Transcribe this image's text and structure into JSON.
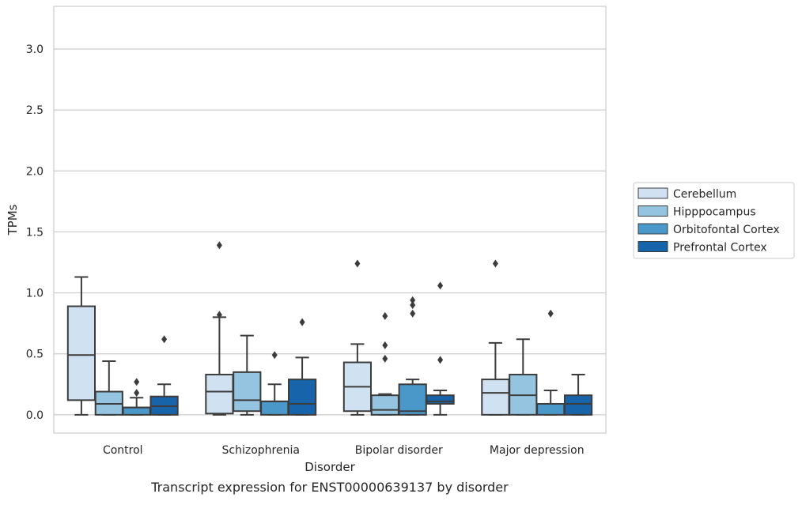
{
  "chart_data": {
    "type": "box",
    "caption": "Transcript expression for ENST00000639137 by disorder",
    "xlabel": "Disorder",
    "ylabel": "TPMs",
    "ylim": [
      -0.15,
      3.35
    ],
    "yticks": [
      0.0,
      0.5,
      1.0,
      1.5,
      2.0,
      2.5,
      3.0
    ],
    "ytick_labels": [
      "0.0",
      "0.5",
      "1.0",
      "1.5",
      "2.0",
      "2.5",
      "3.0"
    ],
    "grid": "horizontal",
    "legend_position": "right",
    "categories": [
      "Control",
      "Schizophrenia",
      "Bipolar disorder",
      "Major depression"
    ],
    "series": [
      {
        "name": "Cerebellum",
        "color": "#d0e1f2",
        "boxes": [
          {
            "whislo": 0.0,
            "q1": 0.12,
            "med": 0.49,
            "q3": 0.89,
            "whishi": 1.13,
            "fliers": []
          },
          {
            "whislo": 0.0,
            "q1": 0.01,
            "med": 0.19,
            "q3": 0.33,
            "whishi": 0.8,
            "fliers": [
              0.82,
              1.39
            ]
          },
          {
            "whislo": 0.0,
            "q1": 0.03,
            "med": 0.23,
            "q3": 0.43,
            "whishi": 0.58,
            "fliers": [
              1.24
            ]
          },
          {
            "whislo": 0.0,
            "q1": 0.0,
            "med": 0.18,
            "q3": 0.29,
            "whishi": 0.59,
            "fliers": [
              1.24
            ]
          }
        ]
      },
      {
        "name": "Hipppocampus",
        "color": "#94c4df",
        "boxes": [
          {
            "whislo": 0.0,
            "q1": 0.0,
            "med": 0.09,
            "q3": 0.19,
            "whishi": 0.44,
            "fliers": []
          },
          {
            "whislo": 0.0,
            "q1": 0.03,
            "med": 0.12,
            "q3": 0.35,
            "whishi": 0.65,
            "fliers": []
          },
          {
            "whislo": 0.0,
            "q1": 0.0,
            "med": 0.04,
            "q3": 0.16,
            "whishi": 0.17,
            "fliers": [
              0.46,
              0.57,
              0.81
            ]
          },
          {
            "whislo": 0.0,
            "q1": 0.0,
            "med": 0.16,
            "q3": 0.33,
            "whishi": 0.62,
            "fliers": []
          }
        ]
      },
      {
        "name": "Orbitofontal Cortex",
        "color": "#4a98c9",
        "boxes": [
          {
            "whislo": 0.0,
            "q1": 0.0,
            "med": 0.06,
            "q3": 0.06,
            "whishi": 0.14,
            "fliers": [
              0.18,
              0.27
            ]
          },
          {
            "whislo": 0.0,
            "q1": 0.0,
            "med": 0.11,
            "q3": 0.11,
            "whishi": 0.25,
            "fliers": [
              0.49
            ]
          },
          {
            "whislo": 0.0,
            "q1": 0.0,
            "med": 0.03,
            "q3": 0.25,
            "whishi": 0.29,
            "fliers": [
              0.83,
              0.9,
              0.94
            ]
          },
          {
            "whislo": 0.0,
            "q1": 0.0,
            "med": 0.09,
            "q3": 0.09,
            "whishi": 0.2,
            "fliers": [
              0.83
            ]
          }
        ]
      },
      {
        "name": "Prefrontal Cortex",
        "color": "#1764ab",
        "boxes": [
          {
            "whislo": 0.0,
            "q1": 0.0,
            "med": 0.07,
            "q3": 0.15,
            "whishi": 0.25,
            "fliers": [
              0.62
            ]
          },
          {
            "whislo": 0.0,
            "q1": 0.0,
            "med": 0.09,
            "q3": 0.29,
            "whishi": 0.47,
            "fliers": [
              0.76
            ]
          },
          {
            "whislo": 0.0,
            "q1": 0.09,
            "med": 0.11,
            "q3": 0.16,
            "whishi": 0.2,
            "fliers": [
              0.45,
              1.06
            ]
          },
          {
            "whislo": 0.0,
            "q1": 0.0,
            "med": 0.09,
            "q3": 0.16,
            "whishi": 0.33,
            "fliers": []
          }
        ]
      }
    ]
  }
}
